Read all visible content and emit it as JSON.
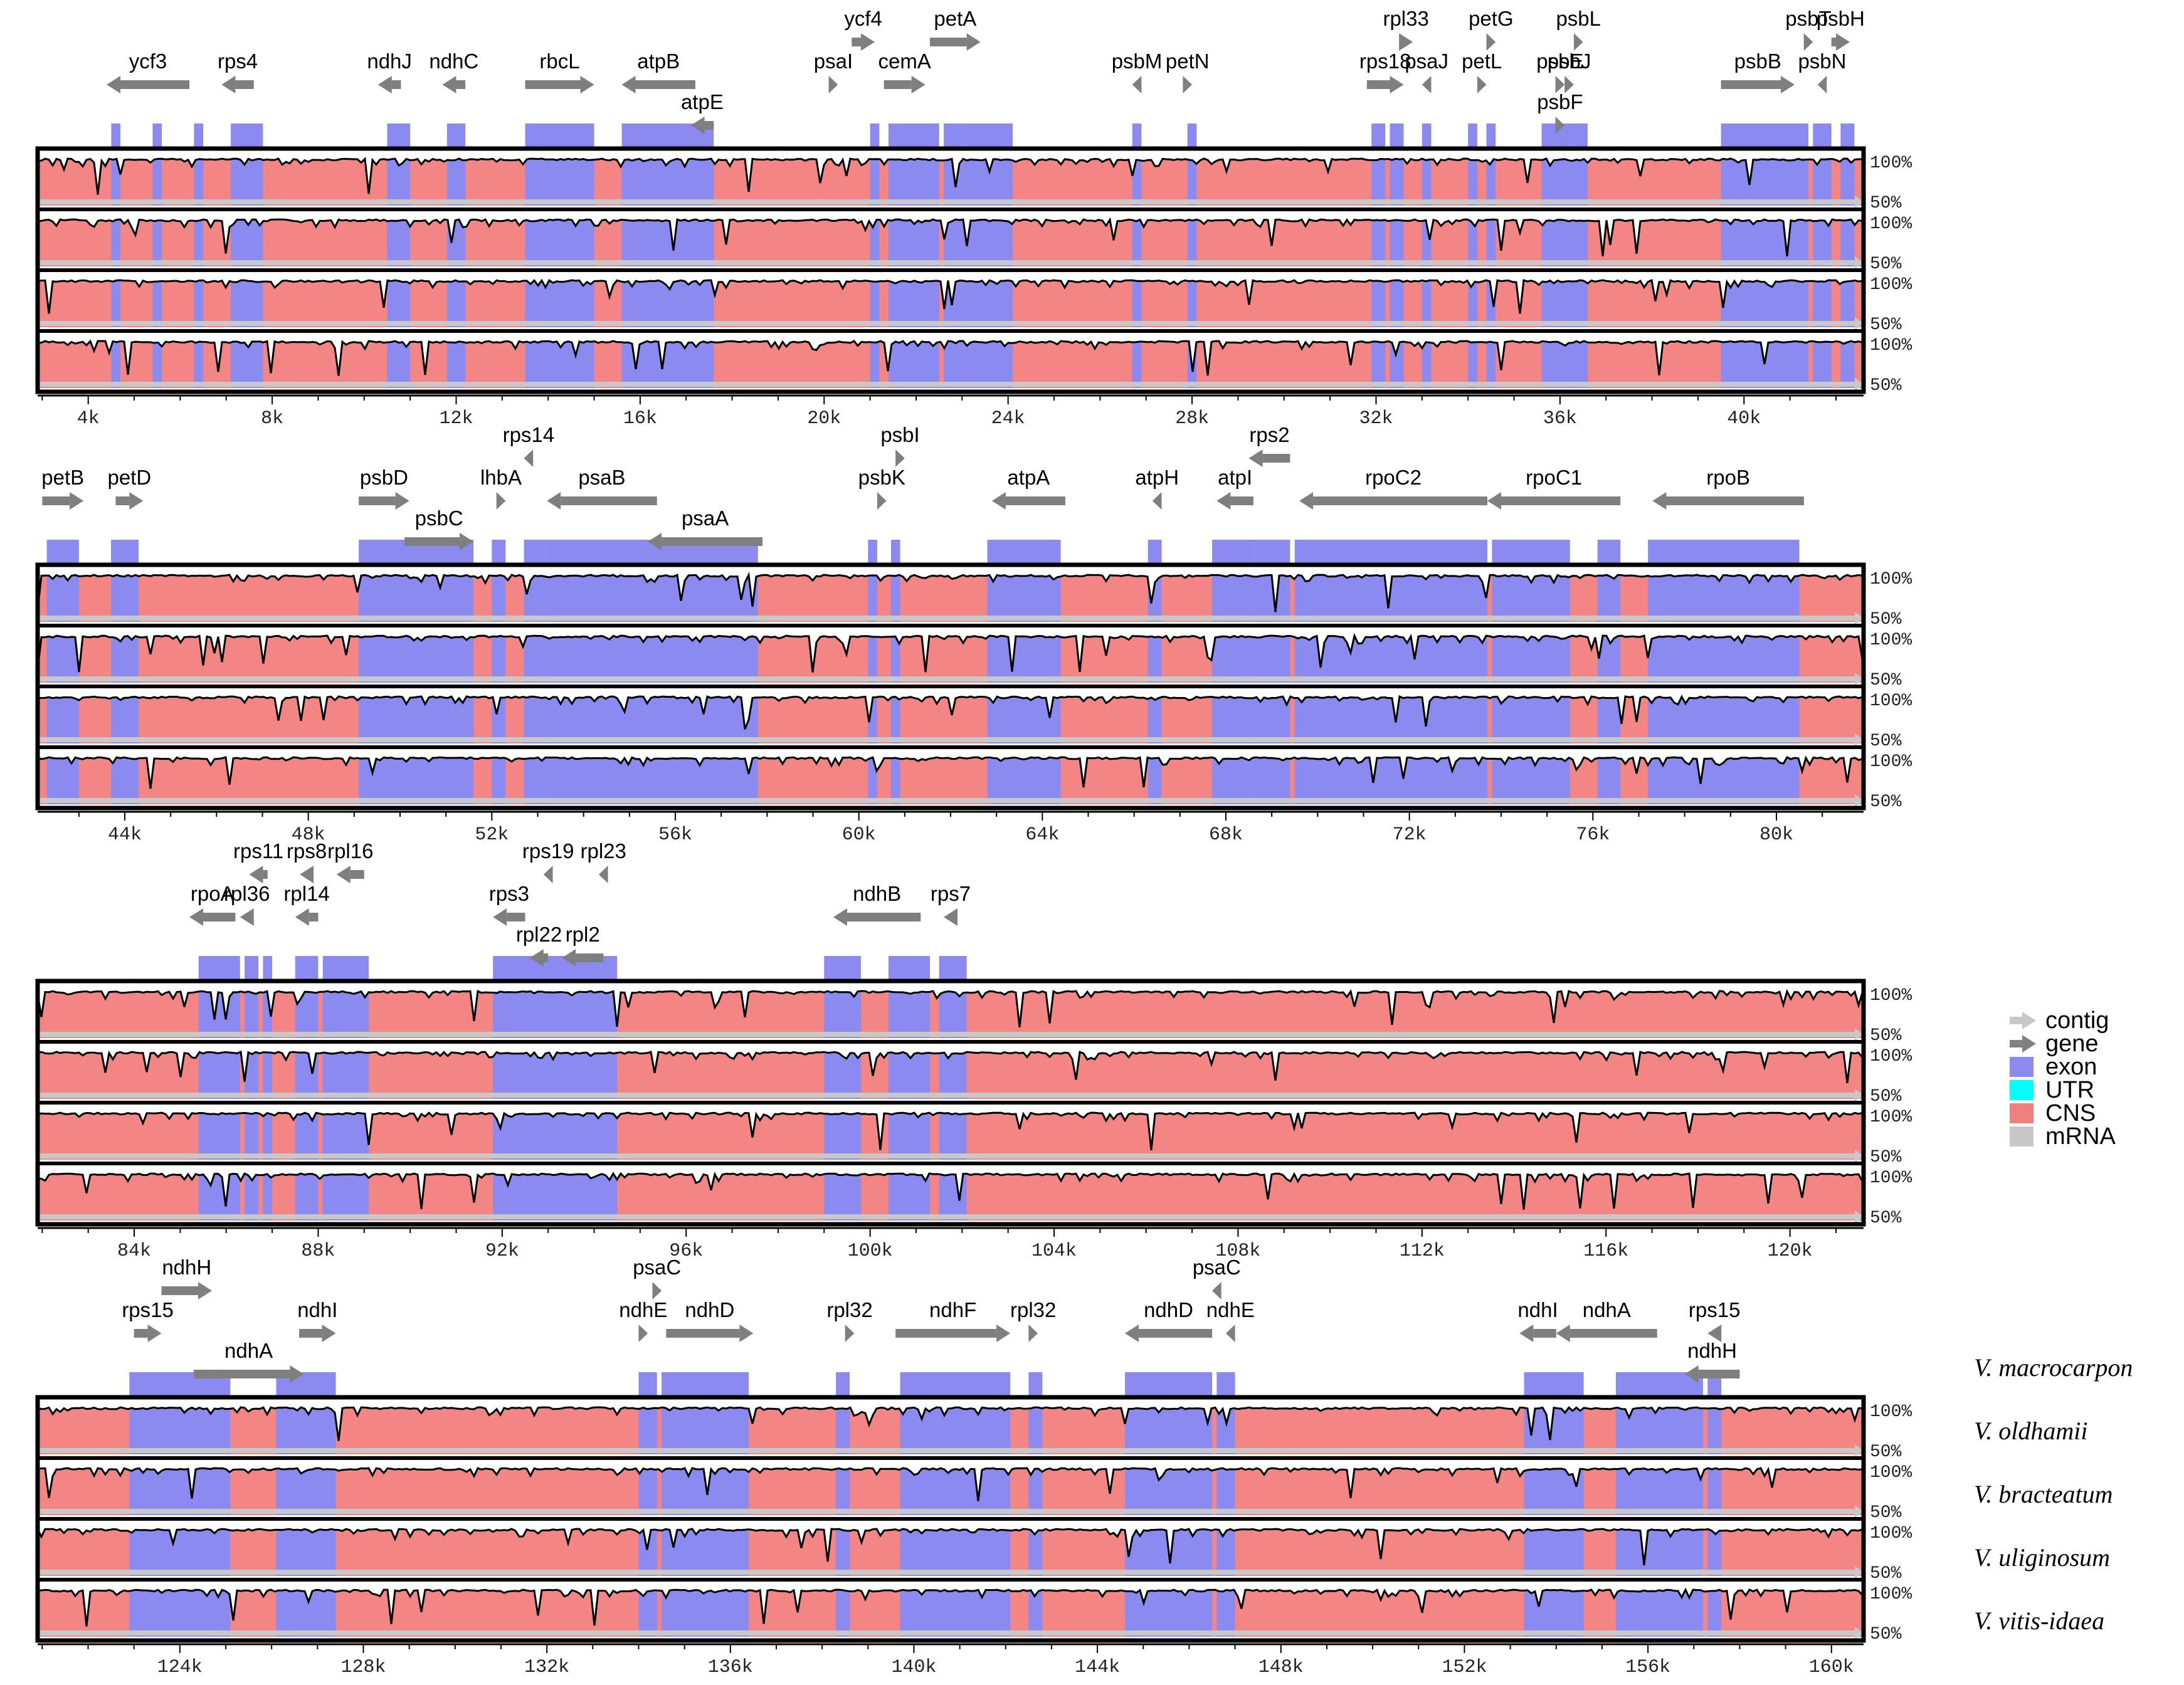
{
  "chart_data": {
    "type": "mvista-plot",
    "title": "",
    "reference": "V. macrocarpon",
    "species": [
      "V. macrocarpon",
      "V. oldhamii",
      "V.  bracteatum",
      "V. uliginosum",
      "V. vitis-idaea"
    ],
    "identity_labels": {
      "top": "100%",
      "bottom": "50%"
    },
    "legend": [
      {
        "label": "contig",
        "color": "#c8c8c8",
        "kind": "arrow"
      },
      {
        "label": "gene",
        "color": "#808080",
        "kind": "arrow"
      },
      {
        "label": "exon",
        "color": "#8a8af0",
        "kind": "box"
      },
      {
        "label": "UTR",
        "color": "#00ffff",
        "kind": "box"
      },
      {
        "label": "CNS",
        "color": "#f08080",
        "kind": "box"
      },
      {
        "label": "mRNA",
        "color": "#c8c8c8",
        "kind": "box"
      }
    ],
    "colors": {
      "exon": "#8a8af0",
      "cns": "#f38585",
      "gene": "#7f7f7f",
      "contig": "#c8c8c8",
      "border": "#000000"
    },
    "rows": [
      {
        "range_kb": [
          2.9,
          42.6
        ],
        "ticks": [
          {
            "v": 4,
            "label": "4k"
          },
          {
            "v": 8,
            "label": "8k"
          },
          {
            "v": 12,
            "label": "12k"
          },
          {
            "v": 16,
            "label": "16k"
          },
          {
            "v": 20,
            "label": "20k"
          },
          {
            "v": 24,
            "label": "24k"
          },
          {
            "v": 28,
            "label": "28k"
          },
          {
            "v": 32,
            "label": "32k"
          },
          {
            "v": 36,
            "label": "36k"
          },
          {
            "v": 40,
            "label": "40k"
          }
        ],
        "exons": [
          [
            4.5,
            4.7
          ],
          [
            5.4,
            5.6
          ],
          [
            6.3,
            6.5
          ],
          [
            7.1,
            7.8
          ],
          [
            10.5,
            11.0
          ],
          [
            11.8,
            12.2
          ],
          [
            13.5,
            15.0
          ],
          [
            15.6,
            17.6
          ],
          [
            21.0,
            21.2
          ],
          [
            21.4,
            21.7
          ],
          [
            21.7,
            22.5
          ],
          [
            22.6,
            23.0
          ],
          [
            23.0,
            24.1
          ],
          [
            26.7,
            26.9
          ],
          [
            27.9,
            28.1
          ],
          [
            31.9,
            32.2
          ],
          [
            32.3,
            32.6
          ],
          [
            33.0,
            33.2
          ],
          [
            34.0,
            34.2
          ],
          [
            34.4,
            34.6
          ],
          [
            35.6,
            36.2
          ],
          [
            36.2,
            36.6
          ],
          [
            39.5,
            41.4
          ],
          [
            41.5,
            41.9
          ],
          [
            42.1,
            42.4
          ]
        ],
        "genes": [
          {
            "name": "ycf3",
            "x0": 6.2,
            "x1": 4.4,
            "label_row": 1
          },
          {
            "name": "rps4",
            "x0": 7.6,
            "x1": 6.9,
            "label_row": 1
          },
          {
            "name": "ndhJ",
            "x0": 10.8,
            "x1": 10.3,
            "label_row": 1
          },
          {
            "name": "ndhC",
            "x0": 12.2,
            "x1": 11.7,
            "label_row": 1
          },
          {
            "name": "rbcL",
            "x0": 13.5,
            "x1": 15.0,
            "label_row": 1
          },
          {
            "name": "atpB",
            "x0": 17.2,
            "x1": 15.6,
            "label_row": 1
          },
          {
            "name": "atpE",
            "x0": 17.6,
            "x1": 17.1,
            "label_row": 0
          },
          {
            "name": "psaI",
            "x0": 20.1,
            "x1": 20.3,
            "label_row": 1
          },
          {
            "name": "ycf4",
            "x0": 20.6,
            "x1": 21.1,
            "label_row": 2
          },
          {
            "name": "cemA",
            "x0": 21.3,
            "x1": 22.2,
            "label_row": 1
          },
          {
            "name": "petA",
            "x0": 22.3,
            "x1": 23.4,
            "label_row": 2
          },
          {
            "name": "psbM",
            "x0": 26.9,
            "x1": 26.7,
            "label_row": 1
          },
          {
            "name": "petN",
            "x0": 27.8,
            "x1": 28.0,
            "label_row": 1
          },
          {
            "name": "rps18",
            "x0": 31.8,
            "x1": 32.6,
            "label_row": 1
          },
          {
            "name": "rpl33",
            "x0": 32.5,
            "x1": 32.8,
            "label_row": 2
          },
          {
            "name": "psaJ",
            "x0": 33.2,
            "x1": 33.0,
            "label_row": 1
          },
          {
            "name": "petL",
            "x0": 34.2,
            "x1": 34.4,
            "label_row": 1
          },
          {
            "name": "petG",
            "x0": 34.4,
            "x1": 34.6,
            "label_row": 2
          },
          {
            "name": "psbF",
            "x0": 35.9,
            "x1": 36.1,
            "label_row": 0
          },
          {
            "name": "psbE",
            "x0": 35.9,
            "x1": 36.1,
            "label_row": 1
          },
          {
            "name": "psbJ",
            "x0": 36.1,
            "x1": 36.3,
            "label_row": 1
          },
          {
            "name": "psbL",
            "x0": 36.3,
            "x1": 36.5,
            "label_row": 2
          },
          {
            "name": "psbB",
            "x0": 39.5,
            "x1": 41.1,
            "label_row": 1
          },
          {
            "name": "psbN",
            "x0": 41.8,
            "x1": 41.6,
            "label_row": 1
          },
          {
            "name": "psbT",
            "x0": 41.3,
            "x1": 41.5,
            "label_row": 2
          },
          {
            "name": "psbH",
            "x0": 41.9,
            "x1": 42.3,
            "label_row": 2
          }
        ]
      },
      {
        "range_kb": [
          42.1,
          81.9
        ],
        "ticks": [
          {
            "v": 44,
            "label": "44k"
          },
          {
            "v": 48,
            "label": "48k"
          },
          {
            "v": 52,
            "label": "52k"
          },
          {
            "v": 56,
            "label": "56k"
          },
          {
            "v": 60,
            "label": "60k"
          },
          {
            "v": 64,
            "label": "64k"
          },
          {
            "v": 68,
            "label": "68k"
          },
          {
            "v": 72,
            "label": "72k"
          },
          {
            "v": 76,
            "label": "76k"
          },
          {
            "v": 80,
            "label": "80k"
          }
        ],
        "exons": [
          [
            42.3,
            43.0
          ],
          [
            43.7,
            44.3
          ],
          [
            49.1,
            51.6
          ],
          [
            52.0,
            52.3
          ],
          [
            52.7,
            53.2
          ],
          [
            53.2,
            57.8
          ],
          [
            60.2,
            60.4
          ],
          [
            60.7,
            60.9
          ],
          [
            62.8,
            64.4
          ],
          [
            66.3,
            66.6
          ],
          [
            67.7,
            68.6
          ],
          [
            68.6,
            69.4
          ],
          [
            69.5,
            73.7
          ],
          [
            73.8,
            75.5
          ],
          [
            76.1,
            76.6
          ],
          [
            77.2,
            80.5
          ]
        ],
        "genes": [
          {
            "name": "petB",
            "x0": 42.2,
            "x1": 43.1,
            "label_row": 1
          },
          {
            "name": "petD",
            "x0": 43.8,
            "x1": 44.4,
            "label_row": 1
          },
          {
            "name": "psbC",
            "x0": 50.1,
            "x1": 51.6,
            "label_row": 0
          },
          {
            "name": "psbD",
            "x0": 49.1,
            "x1": 50.2,
            "label_row": 1
          },
          {
            "name": "lhbA",
            "x0": 52.1,
            "x1": 52.3,
            "label_row": 1
          },
          {
            "name": "rps14",
            "x0": 52.9,
            "x1": 52.7,
            "label_row": 2
          },
          {
            "name": "psaB",
            "x0": 55.6,
            "x1": 53.2,
            "label_row": 1
          },
          {
            "name": "psaA",
            "x0": 57.9,
            "x1": 55.4,
            "label_row": 0
          },
          {
            "name": "psbK",
            "x0": 60.4,
            "x1": 60.6,
            "label_row": 1
          },
          {
            "name": "psbI",
            "x0": 60.8,
            "x1": 61.0,
            "label_row": 2
          },
          {
            "name": "atpA",
            "x0": 64.5,
            "x1": 62.9,
            "label_row": 1
          },
          {
            "name": "atpH",
            "x0": 66.6,
            "x1": 66.4,
            "label_row": 1
          },
          {
            "name": "atpI",
            "x0": 68.6,
            "x1": 67.8,
            "label_row": 1
          },
          {
            "name": "rps2",
            "x0": 69.4,
            "x1": 68.5,
            "label_row": 2
          },
          {
            "name": "rpoC2",
            "x0": 73.7,
            "x1": 69.6,
            "label_row": 1
          },
          {
            "name": "rpoC1",
            "x0": 76.6,
            "x1": 73.7,
            "label_row": 1
          },
          {
            "name": "rpoB",
            "x0": 80.6,
            "x1": 77.3,
            "label_row": 1
          }
        ]
      },
      {
        "range_kb": [
          81.9,
          121.6
        ],
        "ticks": [
          {
            "v": 84,
            "label": "84k"
          },
          {
            "v": 88,
            "label": "88k"
          },
          {
            "v": 92,
            "label": "92k"
          },
          {
            "v": 96,
            "label": "96k"
          },
          {
            "v": 100,
            "label": "100k"
          },
          {
            "v": 104,
            "label": "104k"
          },
          {
            "v": 108,
            "label": "108k"
          },
          {
            "v": 112,
            "label": "112k"
          },
          {
            "v": 116,
            "label": "116k"
          },
          {
            "v": 120,
            "label": "120k"
          }
        ],
        "exons": [
          [
            85.4,
            86.3
          ],
          [
            86.4,
            86.7
          ],
          [
            86.8,
            87.0
          ],
          [
            87.5,
            88.0
          ],
          [
            88.1,
            89.1
          ],
          [
            91.8,
            94.5
          ],
          [
            99.0,
            99.8
          ],
          [
            100.4,
            101.3
          ],
          [
            101.5,
            102.1
          ]
        ],
        "genes": [
          {
            "name": "rpoA",
            "x0": 86.2,
            "x1": 85.2,
            "label_row": 1
          },
          {
            "name": "rpl36",
            "x0": 86.6,
            "x1": 86.3,
            "label_row": 1
          },
          {
            "name": "rps11",
            "x0": 86.9,
            "x1": 86.5,
            "label_row": 2
          },
          {
            "name": "rpl14",
            "x0": 88.0,
            "x1": 87.5,
            "label_row": 1
          },
          {
            "name": "rps8",
            "x0": 87.9,
            "x1": 87.6,
            "label_row": 2
          },
          {
            "name": "rpl16",
            "x0": 89.0,
            "x1": 88.4,
            "label_row": 2
          },
          {
            "name": "rpl22",
            "x0": 93.0,
            "x1": 92.6,
            "label_row": 0
          },
          {
            "name": "rpl2",
            "x0": 94.2,
            "x1": 93.3,
            "label_row": 0
          },
          {
            "name": "rps3",
            "x0": 92.5,
            "x1": 91.8,
            "label_row": 1
          },
          {
            "name": "rps19",
            "x0": 93.1,
            "x1": 92.9,
            "label_row": 2
          },
          {
            "name": "rpl23",
            "x0": 94.3,
            "x1": 94.1,
            "label_row": 2
          },
          {
            "name": "ndhB",
            "x0": 101.1,
            "x1": 99.2,
            "label_row": 1
          },
          {
            "name": "rps7",
            "x0": 101.9,
            "x1": 101.6,
            "label_row": 1
          }
        ]
      },
      {
        "range_kb": [
          120.9,
          160.7
        ],
        "ticks": [
          {
            "v": 124,
            "label": "124k"
          },
          {
            "v": 128,
            "label": "128k"
          },
          {
            "v": 132,
            "label": "132k"
          },
          {
            "v": 136,
            "label": "136k"
          },
          {
            "v": 140,
            "label": "140k"
          },
          {
            "v": 144,
            "label": "144k"
          },
          {
            "v": 148,
            "label": "148k"
          },
          {
            "v": 152,
            "label": "152k"
          },
          {
            "v": 156,
            "label": "156k"
          },
          {
            "v": 160,
            "label": "160k"
          }
        ],
        "exons": [
          [
            122.9,
            125.1
          ],
          [
            126.1,
            127.4
          ],
          [
            134.0,
            134.4
          ],
          [
            134.5,
            136.4
          ],
          [
            138.3,
            138.6
          ],
          [
            139.7,
            142.1
          ],
          [
            142.5,
            142.8
          ],
          [
            144.6,
            146.5
          ],
          [
            146.6,
            147.0
          ],
          [
            153.3,
            154.6
          ],
          [
            155.3,
            157.2
          ],
          [
            157.3,
            157.6
          ]
        ],
        "genes": [
          {
            "name": "ndhA",
            "x0": 124.3,
            "x1": 126.7,
            "label_row": 0
          },
          {
            "name": "rps15",
            "x0": 123.0,
            "x1": 123.6,
            "label_row": 1
          },
          {
            "name": "ndhH",
            "x0": 123.6,
            "x1": 124.7,
            "label_row": 2
          },
          {
            "name": "ndhI",
            "x0": 126.6,
            "x1": 127.4,
            "label_row": 1
          },
          {
            "name": "ndhE",
            "x0": 134.0,
            "x1": 134.2,
            "label_row": 1
          },
          {
            "name": "psaC",
            "x0": 134.3,
            "x1": 134.5,
            "label_row": 2
          },
          {
            "name": "ndhD",
            "x0": 134.6,
            "x1": 136.5,
            "label_row": 1
          },
          {
            "name": "rpl32",
            "x0": 138.5,
            "x1": 138.7,
            "label_row": 1
          },
          {
            "name": "ndhF",
            "x0": 139.6,
            "x1": 142.1,
            "label_row": 1
          },
          {
            "name": "rpl32",
            "x0": 142.5,
            "x1": 142.7,
            "label_row": 1
          },
          {
            "name": "ndhD",
            "x0": 146.5,
            "x1": 144.6,
            "label_row": 1
          },
          {
            "name": "psaC",
            "x0": 146.7,
            "x1": 146.5,
            "label_row": 2
          },
          {
            "name": "ndhE",
            "x0": 147.0,
            "x1": 146.8,
            "label_row": 1
          },
          {
            "name": "ndhI",
            "x0": 154.0,
            "x1": 153.2,
            "label_row": 1
          },
          {
            "name": "ndhA",
            "x0": 156.2,
            "x1": 154.0,
            "label_row": 1
          },
          {
            "name": "ndhH",
            "x0": 158.0,
            "x1": 156.8,
            "label_row": 0
          },
          {
            "name": "rps15",
            "x0": 157.6,
            "x1": 157.3,
            "label_row": 1
          }
        ]
      }
    ]
  }
}
